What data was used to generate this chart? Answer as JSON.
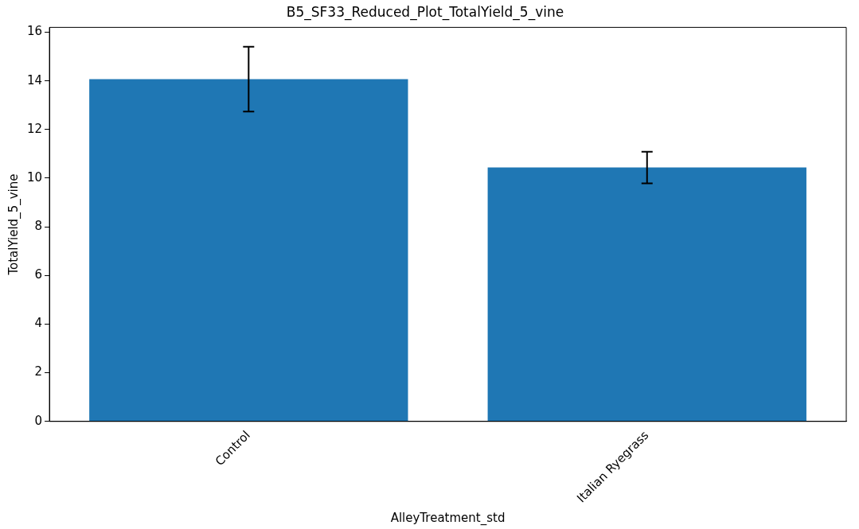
{
  "chart_data": {
    "type": "bar",
    "title": "B5_SF33_Reduced_Plot_TotalYield_5_vine",
    "xlabel": "AlleyTreatment_std",
    "ylabel": "TotalYield_5_vine",
    "categories": [
      "Control",
      "Italian Ryegrass"
    ],
    "values": [
      14.07,
      10.44
    ],
    "errors": [
      1.33,
      0.65
    ],
    "color": "#1f77b4",
    "ylim": [
      0,
      16.2
    ],
    "yticks": [
      0,
      2,
      4,
      6,
      8,
      10,
      12,
      14,
      16
    ],
    "grid": false,
    "legend": false
  }
}
